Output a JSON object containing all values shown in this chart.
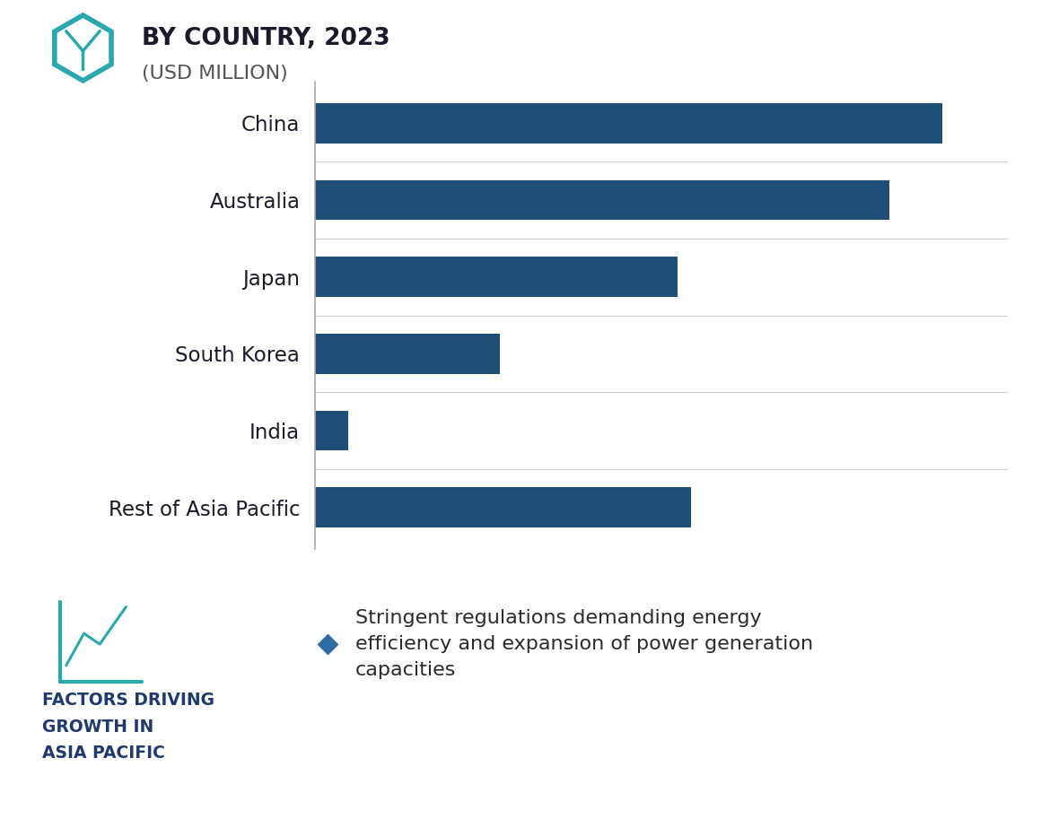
{
  "title_line1": "BY COUNTRY, 2023",
  "title_line2": "(USD MILLION)",
  "categories": [
    "China",
    "Australia",
    "Japan",
    "South Korea",
    "India",
    "Rest of Asia Pacific"
  ],
  "values": [
    95,
    87,
    55,
    28,
    5,
    57
  ],
  "bar_color": "#1f4e79",
  "background_top": "#ffffff",
  "background_bottom": "#e8ebf2",
  "title_color": "#1a1a2e",
  "label_color": "#1a1a2e",
  "factors_title_line1": "FACTORS DRIVING",
  "factors_title_line2": "GROWTH IN",
  "factors_title_line3": "ASIA PACIFIC",
  "factors_title_color": "#1f3a6e",
  "bullet_color": "#2e6da4",
  "bullet_text_line1": "Stringent regulations demanding energy",
  "bullet_text_line2": "efficiency and expansion of power generation",
  "bullet_text_line3": "capacities",
  "icon_color": "#29a8b0",
  "left_spine_color": "#aaaaaa",
  "separator_line_color": "#cccccc"
}
